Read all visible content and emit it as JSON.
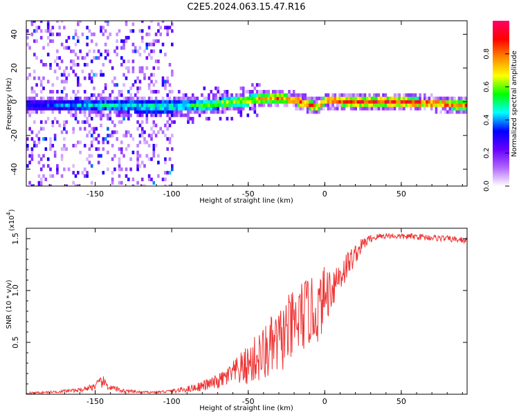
{
  "chart_data": [
    {
      "type": "heatmap",
      "title": "C2E5.2024.063.15.47.R16",
      "xlabel": "Height of straight line (km)",
      "ylabel": "Frequency (Hz)",
      "xlim": [
        -195,
        93
      ],
      "ylim": [
        -50,
        48
      ],
      "x_ticks": [
        -150,
        -100,
        -50,
        0,
        50
      ],
      "y_ticks": [
        -40,
        -20,
        0,
        20,
        40
      ],
      "colorbar": {
        "label": "Normalized spectral amplitude",
        "range": [
          0,
          1
        ],
        "ticks": [
          "0.0",
          "0.2",
          "0.4",
          "0.6",
          "0.8"
        ],
        "tick_values": [
          0,
          0.2,
          0.4,
          0.6,
          0.8
        ],
        "colors": [
          "#ffffff",
          "#b066ff",
          "#6600ff",
          "#0000ff",
          "#00ffff",
          "#00ff00",
          "#ffff00",
          "#ff8800",
          "#ff0000",
          "#ff0066"
        ]
      },
      "band": {
        "x": [
          -195,
          -150,
          -100,
          -80,
          -60,
          -40,
          -30,
          -20,
          -10,
          -5,
          0,
          20,
          50,
          93
        ],
        "center_hz": [
          -2,
          -2,
          -3,
          -2,
          0,
          2,
          2,
          1,
          -2,
          -3,
          1,
          0,
          0,
          -2
        ],
        "peak_amplitude": [
          0.3,
          0.45,
          0.5,
          0.55,
          0.65,
          0.75,
          0.8,
          0.9,
          0.85,
          0.7,
          0.85,
          0.85,
          0.9,
          0.8
        ],
        "spread": "broad scatter below -100 km, narrow band above -40 km"
      }
    },
    {
      "type": "line",
      "xlabel": "Height of straight line (km)",
      "ylabel": "SNR (10 * v/v)",
      "scale_label": "(x10",
      "scale_exp": "4",
      "y_multiplier": 10000,
      "xlim": [
        -195,
        93
      ],
      "ylim": [
        0,
        1.6
      ],
      "x_ticks": [
        -150,
        -100,
        -50,
        0,
        50
      ],
      "y_ticks": [
        "0.5",
        "1.0",
        "1.5"
      ],
      "y_tick_values": [
        0.5,
        1.0,
        1.5
      ],
      "color": "#ee3333",
      "x": [
        -195,
        -180,
        -160,
        -150,
        -145,
        -140,
        -130,
        -120,
        -110,
        -100,
        -90,
        -80,
        -75,
        -70,
        -65,
        -60,
        -55,
        -50,
        -45,
        -40,
        -35,
        -30,
        -25,
        -20,
        -15,
        -10,
        -5,
        0,
        5,
        10,
        15,
        20,
        25,
        30,
        35,
        40,
        50,
        60,
        70,
        80,
        93
      ],
      "y": [
        0.01,
        0.02,
        0.04,
        0.08,
        0.12,
        0.06,
        0.03,
        0.02,
        0.02,
        0.03,
        0.05,
        0.08,
        0.1,
        0.12,
        0.16,
        0.2,
        0.24,
        0.28,
        0.34,
        0.38,
        0.45,
        0.5,
        0.6,
        0.65,
        0.75,
        0.8,
        0.78,
        0.95,
        1.05,
        1.15,
        1.25,
        1.35,
        1.45,
        1.5,
        1.52,
        1.53,
        1.52,
        1.52,
        1.51,
        1.5,
        1.48
      ],
      "noise_amplitude": [
        0.01,
        0.01,
        0.02,
        0.04,
        0.06,
        0.03,
        0.02,
        0.01,
        0.01,
        0.02,
        0.03,
        0.05,
        0.06,
        0.07,
        0.09,
        0.12,
        0.16,
        0.2,
        0.24,
        0.28,
        0.3,
        0.32,
        0.34,
        0.36,
        0.36,
        0.34,
        0.3,
        0.3,
        0.22,
        0.18,
        0.14,
        0.1,
        0.06,
        0.04,
        0.03,
        0.03,
        0.03,
        0.03,
        0.03,
        0.03,
        0.03
      ]
    }
  ]
}
